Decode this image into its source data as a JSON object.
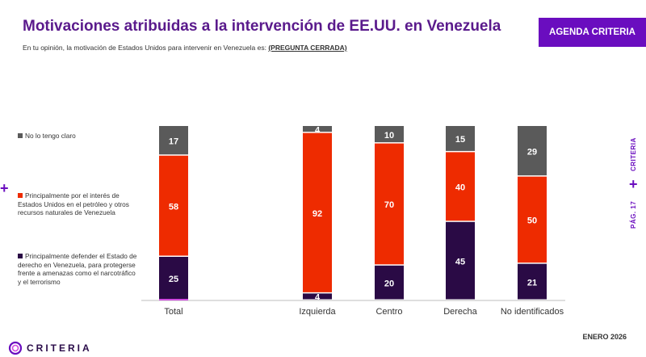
{
  "header": {
    "title": "Motivaciones atribuidas a la intervención de EE.UU. en Venezuela",
    "subtitle_prefix": "En tu opinión, la motivación de Estados Unidos para intervenir en Venezuela es: ",
    "subtitle_link": "(PREGUNTA CERRADA)",
    "tag": "AGENDA CRITERIA"
  },
  "side": {
    "brand": "CRITERIA",
    "page": "PÁG. 17"
  },
  "footer": {
    "date": "ENERO 2026",
    "logo": "CRITERIA"
  },
  "colors": {
    "gray": "#5a5a5a",
    "red": "#ee2b00",
    "dark": "#2a0a45",
    "purple": "#6a0dbf",
    "pink": "#d04be0"
  },
  "chart_data": {
    "type": "bar",
    "stacked": true,
    "categories": [
      "Total",
      "Izquierda",
      "Centro",
      "Derecha",
      "No identificados"
    ],
    "series": [
      {
        "name": "Principalmente defender el Estado de derecho en Venezuela, para protegerse frente a amenazas como el narcotráfico y el terrorismo",
        "values": [
          25,
          4,
          20,
          45,
          21
        ],
        "color": "#2a0a45"
      },
      {
        "name": "Principalmente por el interés de Estados Unidos en el petróleo y otros recursos naturales de Venezuela",
        "values": [
          58,
          92,
          70,
          40,
          50
        ],
        "color": "#ee2b00"
      },
      {
        "name": "No lo tengo claro",
        "values": [
          17,
          4,
          10,
          15,
          29
        ],
        "color": "#5a5a5a"
      }
    ],
    "ylim": [
      0,
      100
    ]
  }
}
